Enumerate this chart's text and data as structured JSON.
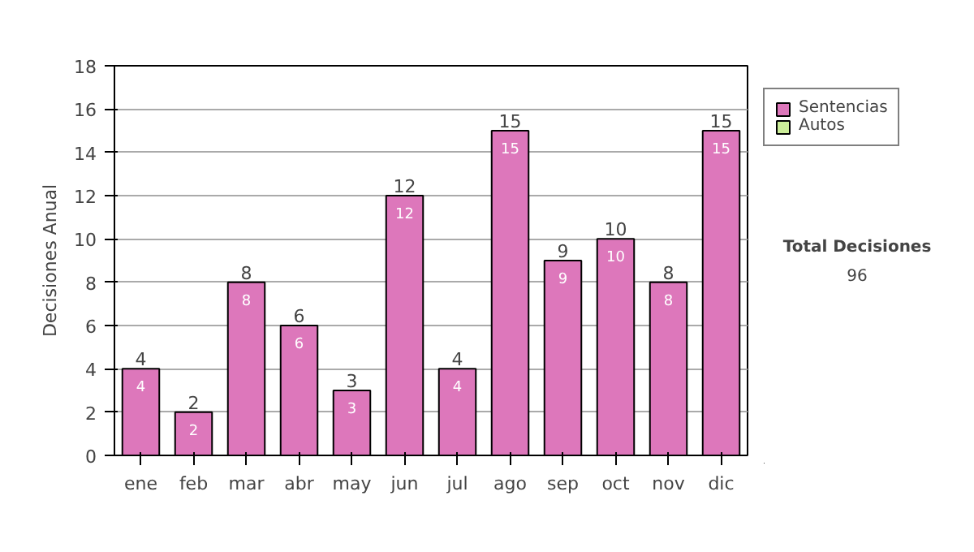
{
  "chart_data": {
    "type": "bar",
    "ylabel": "Decisiones Anual",
    "categories": [
      "ene",
      "feb",
      "mar",
      "abr",
      "may",
      "jun",
      "jul",
      "ago",
      "sep",
      "oct",
      "nov",
      "dic"
    ],
    "series": [
      {
        "name": "Sentencias",
        "color": "#dd77bb",
        "values": [
          4,
          2,
          8,
          6,
          3,
          12,
          4,
          15,
          9,
          10,
          8,
          15
        ],
        "value_labels": [
          "4",
          "2",
          "8",
          "6",
          "3",
          "12",
          "4",
          "15",
          "9",
          "10",
          "8",
          "15"
        ]
      },
      {
        "name": "Autos",
        "color": "#ccee99",
        "values": [
          null,
          null,
          null,
          null,
          null,
          null,
          null,
          null,
          null,
          null,
          null,
          null
        ]
      }
    ],
    "totals": [
      "4",
      "2",
      "8",
      "6",
      "3",
      "12",
      "4",
      "15",
      "9",
      "10",
      "8",
      "15"
    ],
    "ylim": [
      0,
      18
    ],
    "yticks": [
      0,
      2,
      4,
      6,
      8,
      10,
      12,
      14,
      16,
      18
    ],
    "grid": "y",
    "legend": "right",
    "annotations": [
      "Total Decisiones",
      "96"
    ]
  }
}
